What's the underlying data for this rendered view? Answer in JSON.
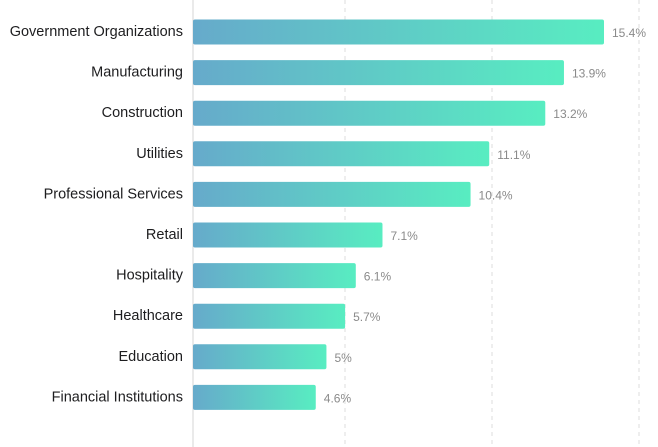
{
  "chart_data": {
    "type": "bar",
    "orientation": "horizontal",
    "title": "",
    "xlabel": "",
    "ylabel": "",
    "categories": [
      "Government Organizations",
      "Manufacturing",
      "Construction",
      "Utilities",
      "Professional Services",
      "Retail",
      "Hospitality",
      "Healthcare",
      "Education",
      "Financial Institutions"
    ],
    "values": [
      15.4,
      13.9,
      13.2,
      11.1,
      10.4,
      7.1,
      6.1,
      5.7,
      5,
      4.6
    ],
    "value_labels": [
      "15.4%",
      "13.9%",
      "13.2%",
      "11.1%",
      "10.4%",
      "7.1%",
      "6.1%",
      "5.7%",
      "5%",
      "4.6%"
    ],
    "xlim": [
      0,
      15.4
    ],
    "grid": true,
    "grid_style": "dashed vertical",
    "colors": {
      "bar_gradient_start": "#66aacb",
      "bar_gradient_end": "#58edc1",
      "grid": "#dcdcdc",
      "axis": "#d6d6d6",
      "category_text": "#1d1d1f",
      "value_text": "#8a8a8a"
    }
  }
}
